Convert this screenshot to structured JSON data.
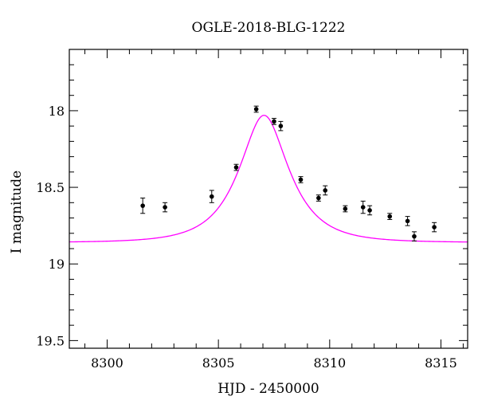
{
  "chart_data": {
    "type": "scatter",
    "title": "OGLE-2018-BLG-1222",
    "xlabel": "HJD - 2450000",
    "ylabel": "I magnitude",
    "xlim": [
      8298.3,
      8316.2
    ],
    "ylim": [
      19.55,
      17.6
    ],
    "y_inverted": true,
    "x_ticks": [
      8300,
      8305,
      8310,
      8315
    ],
    "y_ticks": [
      18,
      18.5,
      19,
      19.5
    ],
    "x_tick_labels": [
      "8300",
      "8305",
      "8310",
      "8315"
    ],
    "y_tick_labels": [
      "18",
      "18.5",
      "19",
      "19.5"
    ],
    "grid": false,
    "series": [
      {
        "kind": "points_with_errorbars",
        "color": "#000000",
        "x": [
          8301.6,
          8302.6,
          8304.7,
          8305.8,
          8306.7,
          8307.5,
          8307.8,
          8308.7,
          8309.5,
          8309.8,
          8310.7,
          8311.5,
          8311.8,
          8312.7,
          8313.5,
          8313.8,
          8314.7
        ],
        "y": [
          18.62,
          18.63,
          18.56,
          18.37,
          17.99,
          18.07,
          18.1,
          18.45,
          18.57,
          18.52,
          18.64,
          18.63,
          18.65,
          18.69,
          18.72,
          18.82,
          18.76
        ],
        "yerr": [
          0.05,
          0.03,
          0.04,
          0.02,
          0.02,
          0.02,
          0.03,
          0.02,
          0.02,
          0.03,
          0.02,
          0.04,
          0.03,
          0.02,
          0.03,
          0.03,
          0.03
        ]
      },
      {
        "kind": "model_curve",
        "color": "#ff00ff",
        "peak_time": 8307.05,
        "peak_mag": 18.03,
        "baseline_mag": 18.86,
        "timescale": 1.9
      }
    ]
  }
}
